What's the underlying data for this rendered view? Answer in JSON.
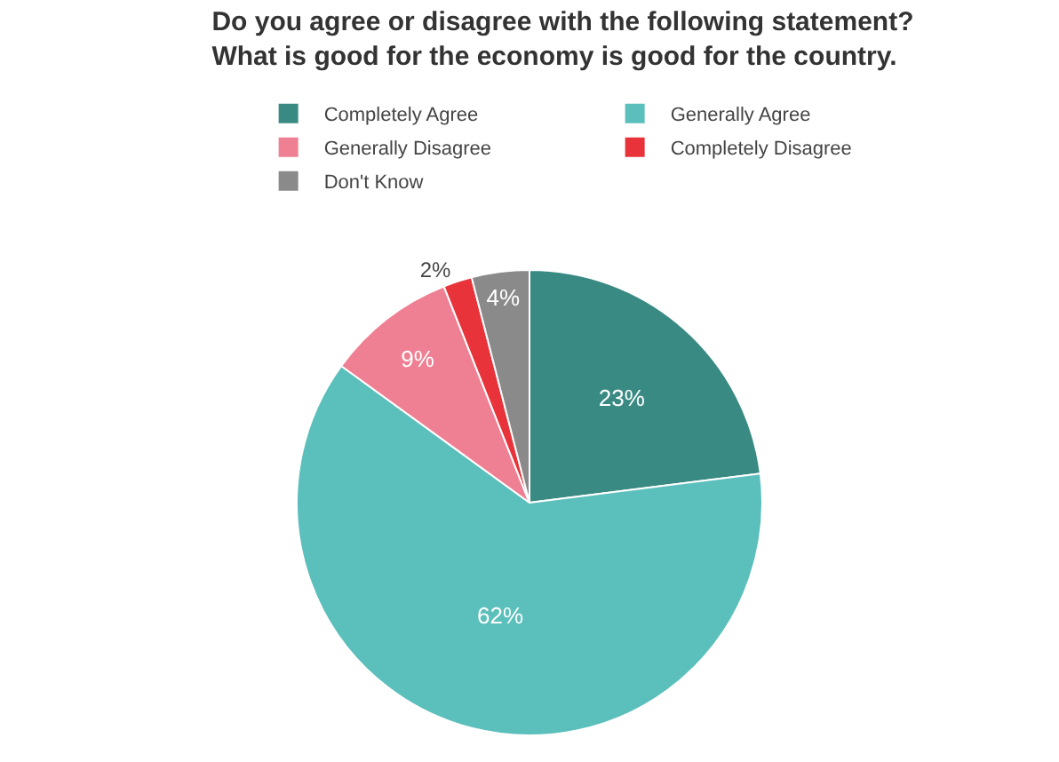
{
  "chart_data": {
    "type": "pie",
    "title": "Do you agree or disagree with the following statement? What is good for the economy is good for the country.",
    "categories": [
      "Completely Agree",
      "Generally Agree",
      "Generally Disagree",
      "Completely Disagree",
      "Don't Know"
    ],
    "values": [
      23,
      62,
      9,
      2,
      4
    ],
    "value_labels": [
      "23%",
      "62%",
      "9%",
      "2%",
      "4%"
    ],
    "colors": [
      "#3a8a84",
      "#5bbfbc",
      "#ef7f93",
      "#e8333a",
      "#8a8a8a"
    ],
    "legend": "top"
  }
}
